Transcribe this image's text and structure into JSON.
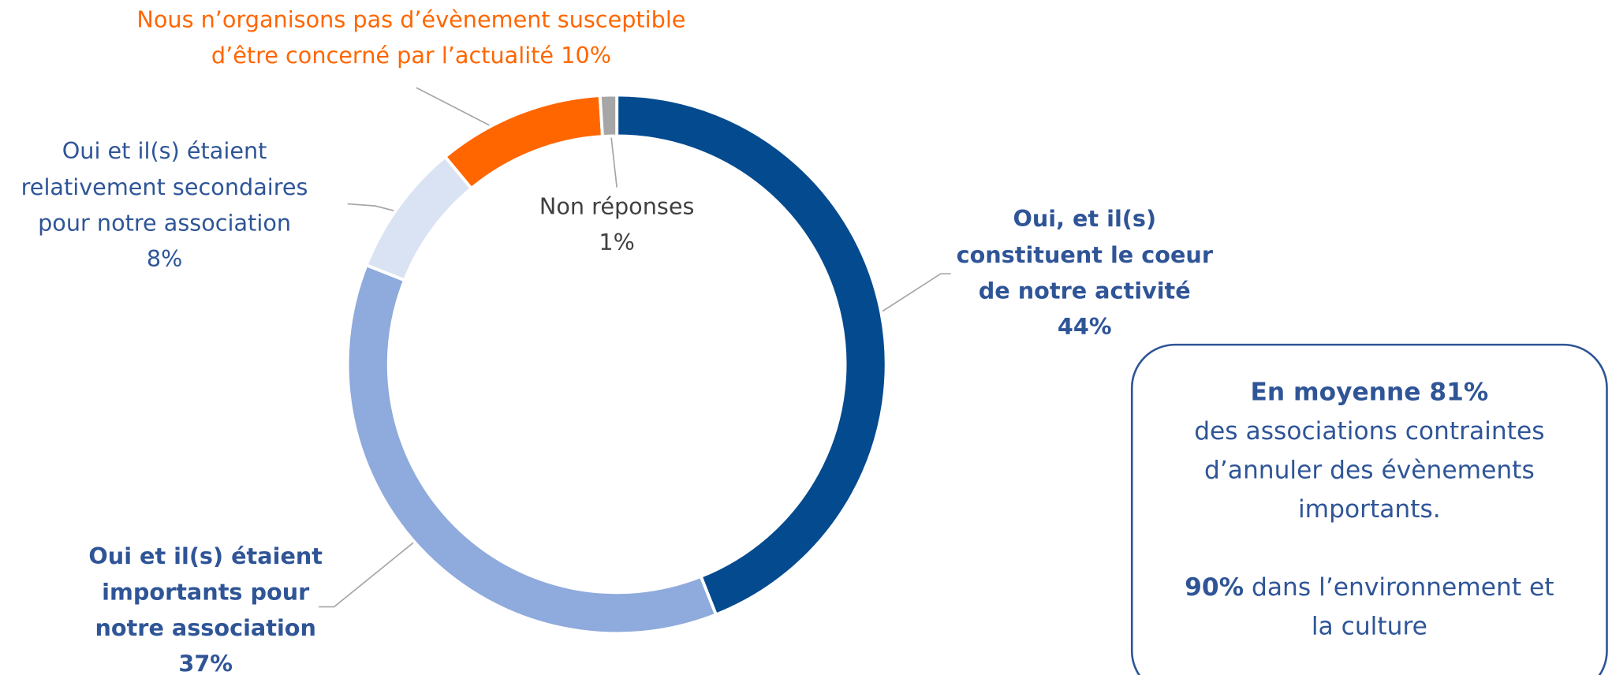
{
  "chart_data": {
    "type": "donut",
    "categories": [
      "Oui, et il(s) constituent le coeur de notre activité",
      "Oui et il(s) étaient importants pour notre association",
      "Oui et il(s) étaient relativement secondaires pour notre association",
      "Nous n’organisons pas d’évènement susceptible d’être concerné par l’actualité",
      "Non réponses"
    ],
    "values": [
      44,
      37,
      8,
      10,
      1
    ],
    "value_labels": [
      "44%",
      "37%",
      "8%",
      "10%",
      "1%"
    ],
    "colors": [
      "#044a8f",
      "#8faadc",
      "#dae3f3",
      "#ff6600",
      "#a6a6a6"
    ]
  },
  "callout": {
    "title": "En moyenne 81%",
    "text": "des associations contraintes d’annuler des évènements importants.",
    "bold": "90%",
    "rest": "dans l’environnement et la culture"
  }
}
